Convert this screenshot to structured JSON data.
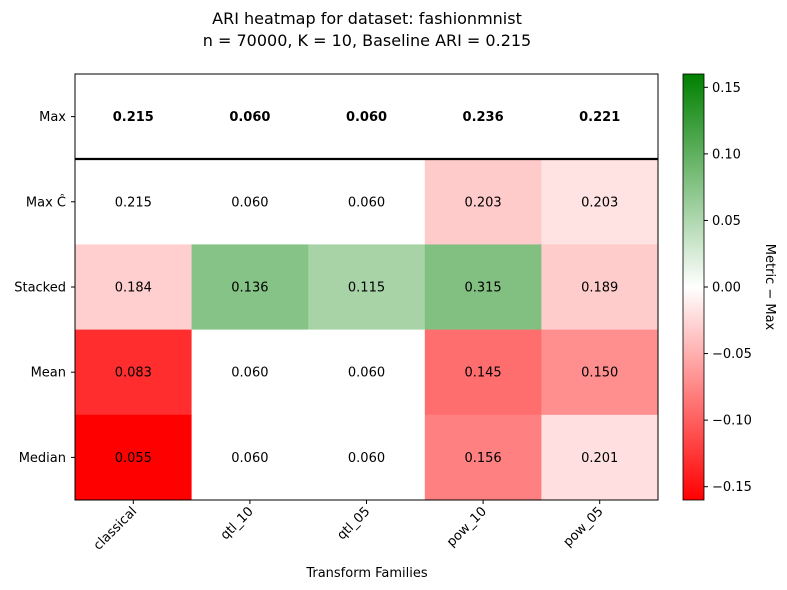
{
  "chart_data": {
    "type": "heatmap",
    "title_line1": "ARI heatmap for dataset: fashionmnist",
    "title_line2": "n = 70000, K = 10, Baseline ARI = 0.215",
    "xlabel": "Transform Families",
    "colorbar_label": "Metric − Max",
    "categories": [
      "classical",
      "qtl_10",
      "qtl_05",
      "pow_10",
      "pow_05"
    ],
    "rows": [
      "Max",
      "Max Ĉ",
      "Stacked",
      "Mean",
      "Median"
    ],
    "values": [
      [
        "0.215",
        "0.060",
        "0.060",
        "0.236",
        "0.221"
      ],
      [
        "0.215",
        "0.060",
        "0.060",
        "0.203",
        "0.203"
      ],
      [
        "0.184",
        "0.136",
        "0.115",
        "0.315",
        "0.189"
      ],
      [
        "0.083",
        "0.060",
        "0.060",
        "0.145",
        "0.150"
      ],
      [
        "0.055",
        "0.060",
        "0.060",
        "0.156",
        "0.201"
      ]
    ],
    "bold_rows": [
      "Max"
    ],
    "color_range": [
      -0.16,
      0.16
    ],
    "colorbar_ticks": [
      "0.15",
      "0.10",
      "0.05",
      "0.00",
      "−0.05",
      "−0.10",
      "−0.15"
    ],
    "colors": {
      "negative": "#ff0000",
      "neutral": "#ffffff",
      "positive": "#008000"
    }
  }
}
